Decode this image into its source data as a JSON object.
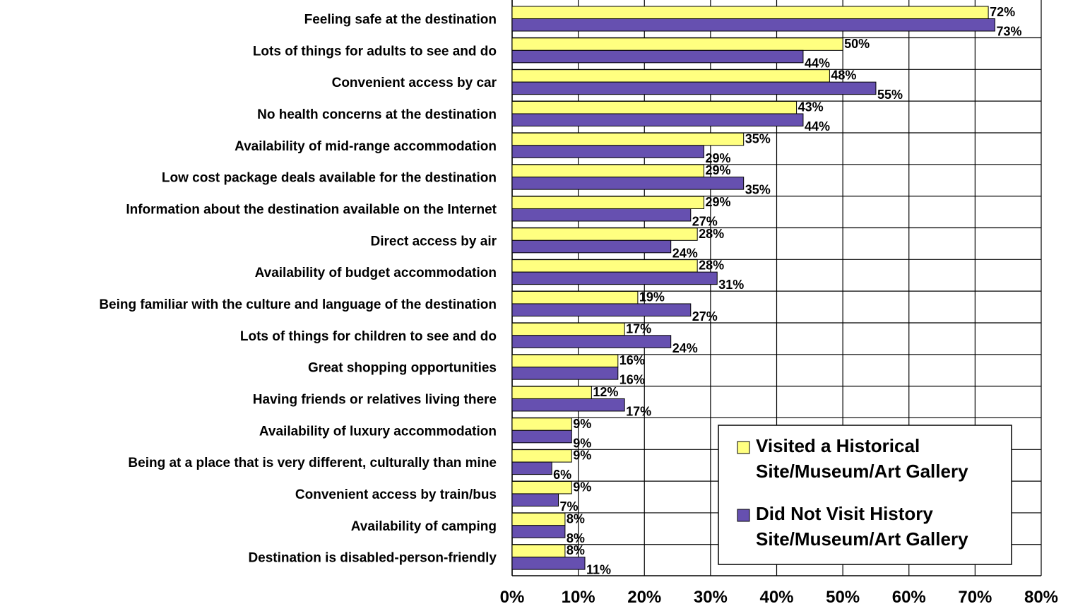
{
  "chart_data": {
    "type": "bar",
    "orientation": "horizontal",
    "title": "",
    "xlabel": "",
    "ylabel": "",
    "xlim": [
      0,
      80
    ],
    "x_ticks": [
      "0%",
      "10%",
      "20%",
      "30%",
      "40%",
      "50%",
      "60%",
      "70%",
      "80%"
    ],
    "grid": true,
    "legend_position": "bottom-right",
    "categories": [
      "Feeling safe at the destination",
      "Lots of things for adults to see and do",
      "Convenient access by car",
      "No health concerns at the destination",
      "Availability of mid-range accommodation",
      "Low cost package deals available for the destination",
      "Information about the destination available on the Internet",
      "Direct access by air",
      "Availability of budget accommodation",
      "Being familiar with the culture and language of the destination",
      "Lots of things for children to see and do",
      "Great shopping opportunities",
      "Having friends or relatives living there",
      "Availability of luxury accommodation",
      "Being at a place that is very different, culturally than mine",
      "Convenient access by train/bus",
      "Availability of camping",
      "Destination is disabled-person-friendly"
    ],
    "series": [
      {
        "name": "Visited a Historical Site/Museum/Art Gallery",
        "legend_lines": [
          "Visited a Historical",
          "Site/Museum/Art Gallery"
        ],
        "color": "#FFFF80",
        "values": [
          72,
          50,
          48,
          43,
          35,
          29,
          29,
          28,
          28,
          19,
          17,
          16,
          12,
          9,
          9,
          9,
          8,
          8
        ],
        "labels": [
          "72%",
          "50%",
          "48%",
          "43%",
          "35%",
          "29%",
          "29%",
          "28%",
          "28%",
          "19%",
          "17%",
          "16%",
          "12%",
          "9%",
          "9%",
          "9%",
          "8%",
          "8%"
        ]
      },
      {
        "name": "Did Not Visit History Site/Museum/Art Gallery",
        "legend_lines": [
          "Did Not Visit History",
          "Site/Museum/Art Gallery"
        ],
        "color": "#6650B0",
        "values": [
          73,
          44,
          55,
          44,
          29,
          35,
          27,
          24,
          31,
          27,
          24,
          16,
          17,
          9,
          6,
          7,
          8,
          11
        ],
        "labels": [
          "73%",
          "44%",
          "55%",
          "44%",
          "29%",
          "35%",
          "27%",
          "24%",
          "31%",
          "27%",
          "24%",
          "16%",
          "17%",
          "9%",
          "6%",
          "7%",
          "8%",
          "11%"
        ]
      }
    ]
  }
}
